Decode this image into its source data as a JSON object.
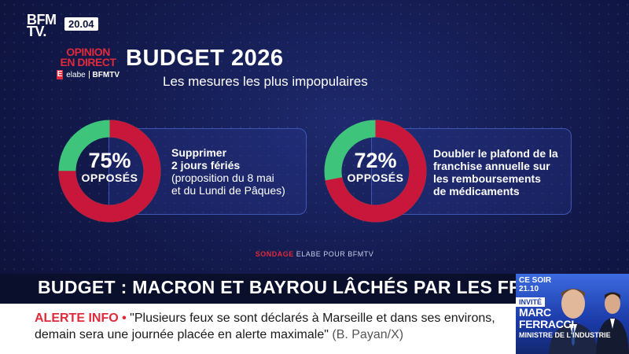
{
  "channel": {
    "logo_line1": "BFM",
    "logo_line2": "TV.",
    "time": "20.04"
  },
  "poll": {
    "brand_line1": "OPINION",
    "brand_line2": "EN DIRECT",
    "brand_logo_mark": "E",
    "brand_partner1": "elabe",
    "brand_partner2": "BFMTV",
    "title": "BUDGET 2026",
    "subtitle": "Les mesures les plus impopulaires",
    "items": [
      {
        "percent": 75,
        "percent_label": "75%",
        "label": "OPPOSÉS",
        "desc_bold_line1": "Supprimer",
        "desc_bold_line2": "2 jours fériés",
        "desc_line3": "(proposition du 8 mai",
        "desc_line4": "et du Lundi de Pâques)"
      },
      {
        "percent": 72,
        "percent_label": "72%",
        "label": "OPPOSÉS",
        "desc_line1": "Doubler le plafond de la",
        "desc_line2": "franchise annuelle sur",
        "desc_line3": "les remboursements",
        "desc_line4": "de médicaments"
      }
    ],
    "source_prefix": "SONDAGE",
    "source_rest": "ELABE POUR BFMTV",
    "colors": {
      "opposed": "#c8173a",
      "rest": "#3fc47c"
    }
  },
  "ticker": {
    "headline": "BUDGET : MACRON ET BAYROU LÂCHÉS PAR LES FRANÇAIS ?",
    "alert_label": "ALERTE INFO •",
    "alert_text": "\"Plusieurs feux se sont déclarés à Marseille et dans ses environs, demain sera une journée placée en alerte maximale\"",
    "alert_source": "(B. Payan/X)"
  },
  "guest": {
    "tonight_line1": "CE SOIR",
    "tonight_line2": "21.10",
    "invite_label": "INVITÉ",
    "name_line1": "MARC",
    "name_line2": "FERRACCI",
    "role": "MINISTRE DE L'INDUSTRIE"
  }
}
